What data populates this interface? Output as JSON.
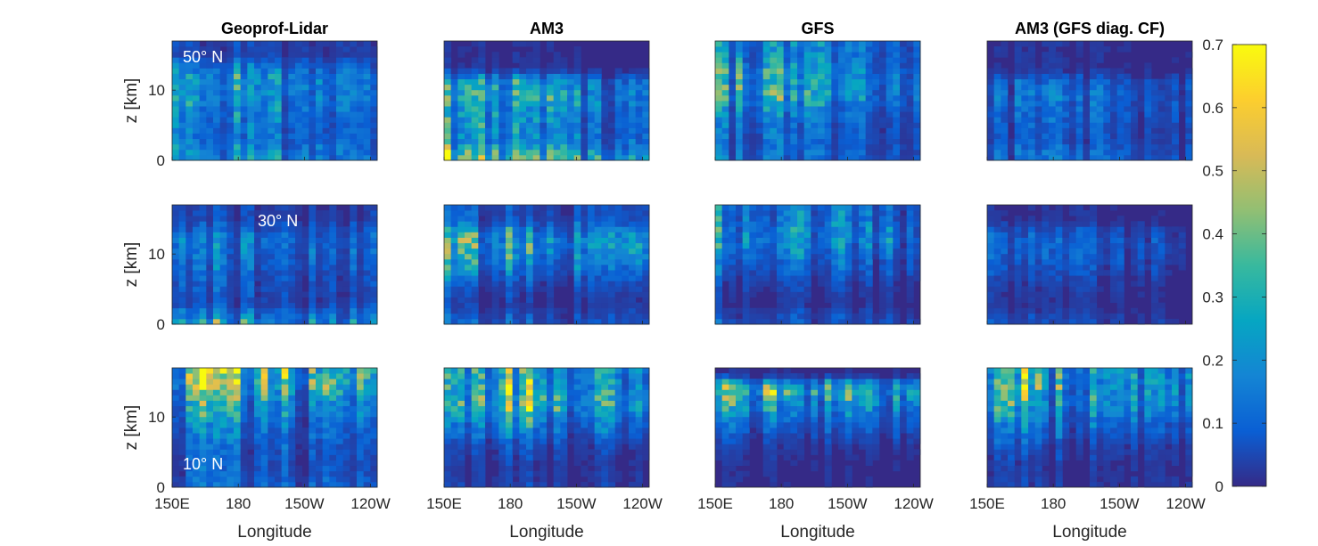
{
  "chart_data": {
    "type": "heatmap",
    "panel_titles": [
      "Geoprof-Lidar",
      "AM3",
      "GFS",
      "AM3 (GFS diag. CF)"
    ],
    "latitude_labels": [
      "50° N",
      "30° N",
      "10° N"
    ],
    "xlabel": "Longitude",
    "ylabel": "z [km]",
    "x_ticks": [
      "150E",
      "180",
      "150W",
      "120W"
    ],
    "x_tick_positions_deg": [
      150,
      180,
      210,
      240
    ],
    "xlim_deg": [
      150,
      243
    ],
    "y_ticks": [
      "0",
      "10"
    ],
    "y_tick_values": [
      0,
      10
    ],
    "ylim": [
      0,
      17
    ],
    "colorbar": {
      "ticks": [
        "0",
        "0.1",
        "0.2",
        "0.3",
        "0.4",
        "0.5",
        "0.6",
        "0.7"
      ],
      "tick_values": [
        0,
        0.1,
        0.2,
        0.3,
        0.4,
        0.5,
        0.6,
        0.7
      ],
      "range": [
        0,
        0.7
      ],
      "colormap": "parula"
    },
    "cloud_fraction_rows": [
      {
        "latitude": "50° N",
        "panels": {
          "Geoprof-Lidar": {
            "mean_by_height": {
              "0": 0.22,
              "3": 0.14,
              "6": 0.16,
              "9": 0.22,
              "12": 0.22,
              "15": 0.05
            }
          },
          "AM3": {
            "mean_by_height": {
              "0": 0.42,
              "3": 0.18,
              "6": 0.2,
              "9": 0.28,
              "11": 0.25,
              "13": 0.02
            }
          },
          "GFS": {
            "mean_by_height": {
              "0": 0.12,
              "3": 0.1,
              "6": 0.13,
              "9": 0.24,
              "11": 0.26,
              "15": 0.18
            }
          },
          "AM3 (GFS diag. CF)": {
            "mean_by_height": {
              "0": 0.12,
              "3": 0.07,
              "6": 0.09,
              "9": 0.12,
              "11": 0.1,
              "13": 0.02
            }
          }
        }
      },
      {
        "latitude": "30° N",
        "panels": {
          "Geoprof-Lidar": {
            "mean_by_height": {
              "0": 0.3,
              "3": 0.07,
              "6": 0.1,
              "9": 0.14,
              "12": 0.18,
              "15": 0.06
            }
          },
          "AM3": {
            "mean_by_height": {
              "0": 0.1,
              "3": 0.03,
              "6": 0.08,
              "9": 0.22,
              "12": 0.3,
              "15": 0.08
            }
          },
          "GFS": {
            "mean_by_height": {
              "0": 0.1,
              "3": 0.03,
              "6": 0.06,
              "9": 0.14,
              "12": 0.24,
              "15": 0.18
            }
          },
          "AM3 (GFS diag. CF)": {
            "mean_by_height": {
              "0": 0.06,
              "3": 0.02,
              "6": 0.04,
              "9": 0.08,
              "12": 0.1,
              "15": 0.02
            }
          }
        }
      },
      {
        "latitude": "10° N",
        "panels": {
          "Geoprof-Lidar": {
            "mean_by_height": {
              "0": 0.12,
              "3": 0.08,
              "6": 0.1,
              "9": 0.16,
              "12": 0.24,
              "15": 0.4
            }
          },
          "AM3": {
            "mean_by_height": {
              "0": 0.06,
              "3": 0.04,
              "6": 0.08,
              "9": 0.22,
              "12": 0.42,
              "15": 0.36
            }
          },
          "GFS": {
            "mean_by_height": {
              "0": 0.02,
              "3": 0.02,
              "6": 0.04,
              "9": 0.12,
              "12": 0.28,
              "14": 0.42,
              "16": 0.02
            }
          },
          "AM3 (GFS diag. CF)": {
            "mean_by_height": {
              "0": 0.04,
              "3": 0.03,
              "6": 0.06,
              "9": 0.14,
              "12": 0.26,
              "14": 0.3
            }
          }
        }
      }
    ]
  }
}
